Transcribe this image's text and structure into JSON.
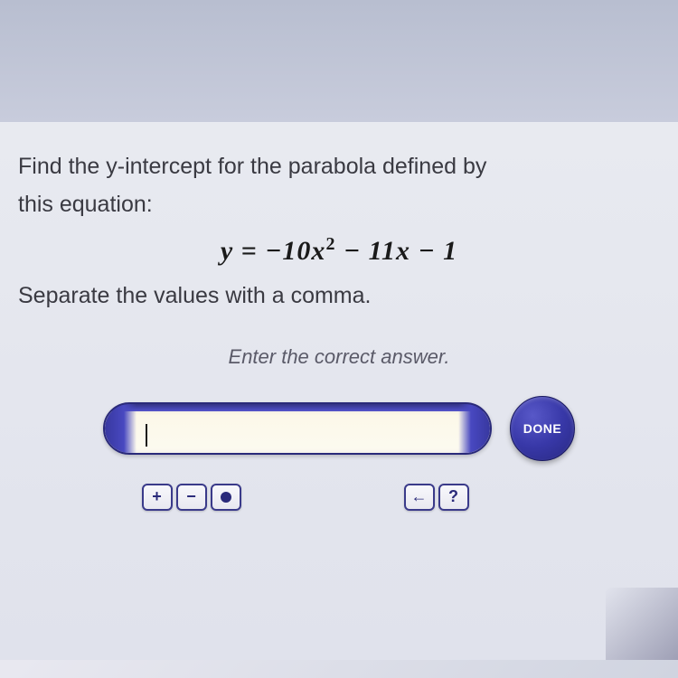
{
  "question": {
    "line1": "Find the y-intercept for the parabola defined by",
    "line2": "this equation:",
    "equation_html": "y = −10x<sup>2</sup> − 11x − 1",
    "separate": "Separate the values with a comma.",
    "prompt": "Enter the correct answer."
  },
  "input": {
    "value": ""
  },
  "buttons": {
    "done": "DONE",
    "plus": "+",
    "minus": "−",
    "back": "←",
    "help": "?"
  }
}
